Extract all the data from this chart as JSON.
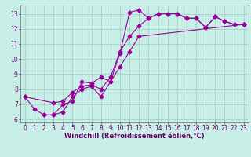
{
  "xlabel": "Windchill (Refroidissement éolien,°C)",
  "background_color": "#c8eee8",
  "grid_color": "#a0ccc0",
  "line_color": "#990099",
  "spine_color": "#666666",
  "xlim": [
    -0.5,
    23.5
  ],
  "ylim": [
    5.8,
    13.6
  ],
  "xticks": [
    0,
    1,
    2,
    3,
    4,
    5,
    6,
    7,
    8,
    9,
    10,
    11,
    12,
    13,
    14,
    15,
    16,
    17,
    18,
    19,
    20,
    21,
    22,
    23
  ],
  "yticks": [
    6,
    7,
    8,
    9,
    10,
    11,
    12,
    13
  ],
  "line1_x": [
    0,
    1,
    2,
    3,
    4,
    5,
    6,
    7,
    8,
    9,
    10,
    11,
    12,
    13,
    14,
    15,
    16,
    17,
    18,
    19,
    20,
    21,
    22,
    23
  ],
  "line1_y": [
    7.5,
    6.7,
    6.3,
    6.3,
    7.0,
    7.2,
    8.5,
    8.4,
    8.8,
    8.5,
    10.4,
    13.1,
    13.25,
    12.7,
    13.0,
    13.0,
    13.0,
    12.7,
    12.7,
    12.1,
    12.8,
    12.5,
    12.3,
    12.3
  ],
  "line2_x": [
    0,
    3,
    4,
    5,
    6,
    7,
    8,
    9,
    10,
    11,
    12,
    13,
    14,
    15,
    16,
    17,
    18,
    19,
    20,
    21,
    22,
    23
  ],
  "line2_y": [
    7.5,
    7.1,
    7.2,
    7.8,
    8.2,
    8.3,
    8.0,
    8.8,
    10.5,
    11.5,
    12.2,
    12.7,
    13.0,
    13.0,
    13.0,
    12.7,
    12.7,
    12.1,
    12.8,
    12.5,
    12.3,
    12.3
  ],
  "line3_x": [
    2,
    3,
    4,
    5,
    6,
    7,
    8,
    9,
    10,
    11,
    12,
    23
  ],
  "line3_y": [
    6.3,
    6.3,
    6.5,
    7.5,
    8.0,
    8.2,
    7.5,
    8.5,
    9.5,
    10.5,
    11.5,
    12.3
  ],
  "markersize": 2.5,
  "linewidth": 0.8,
  "xlabel_fontsize": 6.0,
  "tick_fontsize": 5.5,
  "tick_color": "#660066",
  "label_color": "#660066"
}
